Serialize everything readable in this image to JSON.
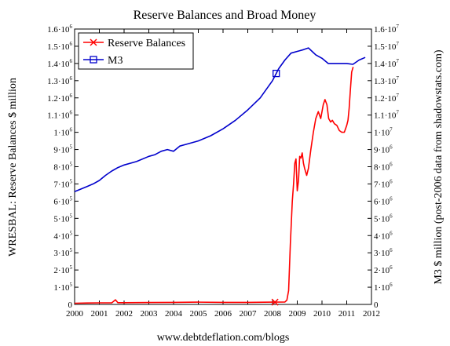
{
  "chart_data": {
    "type": "line",
    "title": "Reserve Balances and Broad Money",
    "footer": "www.debtdeflation.com/blogs",
    "ylabel_left": "WRESBAL: Reserve Balances $ million",
    "ylabel_right": "M3 $ million (post-2006 data from shadowstats.com)",
    "xlim": [
      2000,
      2012
    ],
    "x_ticks": [
      "2000",
      "2001",
      "2002",
      "2003",
      "2004",
      "2005",
      "2006",
      "2007",
      "2008",
      "2009",
      "2010",
      "2011",
      "2012"
    ],
    "y_left": {
      "lim": [
        0,
        1600000
      ],
      "ticks": [
        {
          "m": "0",
          "e": ""
        },
        {
          "m": "1·10",
          "e": "5"
        },
        {
          "m": "2·10",
          "e": "5"
        },
        {
          "m": "3·10",
          "e": "5"
        },
        {
          "m": "4·10",
          "e": "5"
        },
        {
          "m": "5·10",
          "e": "5"
        },
        {
          "m": "6·10",
          "e": "5"
        },
        {
          "m": "7·10",
          "e": "5"
        },
        {
          "m": "8·10",
          "e": "5"
        },
        {
          "m": "9·10",
          "e": "5"
        },
        {
          "m": "1·10",
          "e": "6"
        },
        {
          "m": "1.1·10",
          "e": "6"
        },
        {
          "m": "1.2·10",
          "e": "6"
        },
        {
          "m": "1.3·10",
          "e": "6"
        },
        {
          "m": "1.4·10",
          "e": "6"
        },
        {
          "m": "1.5·10",
          "e": "6"
        },
        {
          "m": "1.6·10",
          "e": "6"
        }
      ]
    },
    "y_right": {
      "lim": [
        0,
        16000000
      ],
      "ticks": [
        {
          "m": "0",
          "e": ""
        },
        {
          "m": "1·10",
          "e": "6"
        },
        {
          "m": "2·10",
          "e": "6"
        },
        {
          "m": "3·10",
          "e": "6"
        },
        {
          "m": "4·10",
          "e": "6"
        },
        {
          "m": "5·10",
          "e": "6"
        },
        {
          "m": "6·10",
          "e": "6"
        },
        {
          "m": "7·10",
          "e": "6"
        },
        {
          "m": "8·10",
          "e": "6"
        },
        {
          "m": "9·10",
          "e": "6"
        },
        {
          "m": "1·10",
          "e": "7"
        },
        {
          "m": "1.1·10",
          "e": "7"
        },
        {
          "m": "1.2·10",
          "e": "7"
        },
        {
          "m": "1.3·10",
          "e": "7"
        },
        {
          "m": "1.4·10",
          "e": "7"
        },
        {
          "m": "1.5·10",
          "e": "7"
        },
        {
          "m": "1.6·10",
          "e": "7"
        }
      ]
    },
    "legend_position": "top-left",
    "grid": false,
    "series": [
      {
        "name": "Reserve Balances",
        "axis": "left",
        "color": "#ff0000",
        "marker": "x",
        "marker_x": 2008.1,
        "x": [
          2000.0,
          2000.5,
          2001.0,
          2001.5,
          2001.65,
          2001.75,
          2002.0,
          2003.0,
          2004.0,
          2005.0,
          2006.0,
          2007.0,
          2008.0,
          2008.5,
          2008.58,
          2008.65,
          2008.72,
          2008.8,
          2008.85,
          2008.9,
          2008.95,
          2009.0,
          2009.05,
          2009.1,
          2009.15,
          2009.2,
          2009.25,
          2009.3,
          2009.38,
          2009.45,
          2009.55,
          2009.65,
          2009.75,
          2009.85,
          2009.95,
          2010.05,
          2010.12,
          2010.2,
          2010.27,
          2010.35,
          2010.42,
          2010.5,
          2010.6,
          2010.7,
          2010.8,
          2010.9,
          2011.0,
          2011.05,
          2011.1,
          2011.15,
          2011.2,
          2011.26
        ],
        "y": [
          7000,
          8000,
          9000,
          9000,
          27000,
          10000,
          10000,
          11000,
          12000,
          13000,
          12000,
          12000,
          13000,
          14000,
          25000,
          80000,
          350000,
          600000,
          700000,
          820000,
          845000,
          660000,
          720000,
          860000,
          850000,
          880000,
          820000,
          790000,
          750000,
          790000,
          900000,
          1000000,
          1080000,
          1120000,
          1080000,
          1160000,
          1190000,
          1160000,
          1080000,
          1060000,
          1070000,
          1050000,
          1040000,
          1010000,
          1000000,
          1000000,
          1040000,
          1070000,
          1140000,
          1250000,
          1350000,
          1380000
        ]
      },
      {
        "name": "M3",
        "axis": "right",
        "color": "#0000cc",
        "marker": "square",
        "marker_x": 2008.15,
        "x": [
          2000.0,
          2000.25,
          2000.5,
          2000.75,
          2001.0,
          2001.25,
          2001.5,
          2001.75,
          2002.0,
          2002.5,
          2003.0,
          2003.25,
          2003.5,
          2003.75,
          2004.0,
          2004.25,
          2004.5,
          2005.0,
          2005.5,
          2006.0,
          2006.5,
          2007.0,
          2007.5,
          2008.0,
          2008.25,
          2008.5,
          2008.75,
          2009.0,
          2009.25,
          2009.45,
          2009.6,
          2009.75,
          2010.0,
          2010.25,
          2010.5,
          2010.75,
          2011.0,
          2011.25,
          2011.5,
          2011.75
        ],
        "y": [
          6550000,
          6700000,
          6850000,
          7000000,
          7200000,
          7500000,
          7750000,
          7950000,
          8100000,
          8300000,
          8600000,
          8700000,
          8900000,
          9000000,
          8900000,
          9200000,
          9300000,
          9500000,
          9800000,
          10200000,
          10700000,
          11300000,
          12000000,
          13000000,
          13700000,
          14200000,
          14600000,
          14700000,
          14800000,
          14900000,
          14700000,
          14500000,
          14300000,
          14000000,
          14000000,
          14000000,
          14000000,
          13950000,
          14200000,
          14350000
        ]
      }
    ]
  }
}
